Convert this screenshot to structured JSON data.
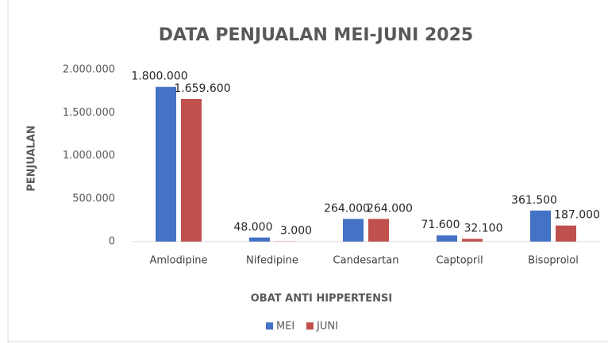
{
  "chart_data": {
    "type": "bar",
    "title": "DATA PENJUALAN MEI-JUNI 2025",
    "x_label": "OBAT ANTI HIPPERTENSI",
    "y_label": "PENJUALAN",
    "categories": [
      "Amlodipine",
      "Nifedipine",
      "Candesartan",
      "Captopril",
      "Bisoprolol"
    ],
    "series": [
      {
        "name": "MEI",
        "color": "#4472c4",
        "values": [
          1800000,
          48000,
          264000,
          71600,
          361500
        ],
        "value_labels": [
          "1.800.000",
          "48.000",
          "264.000",
          "71.600",
          "361.500"
        ]
      },
      {
        "name": "JUNI",
        "color": "#c0504d",
        "values": [
          1659600,
          3000,
          264000,
          32100,
          187000
        ],
        "value_labels": [
          "1.659.600",
          "3.000",
          "264.000",
          "32.100",
          "187.000"
        ]
      }
    ],
    "ylim": [
      0,
      2000000
    ],
    "yticks": [
      0,
      {
        "value": 500000,
        "label": "500.000"
      },
      {
        "value": 1000000,
        "label": "1.000.000"
      },
      {
        "value": 1500000,
        "label": "1.500.000"
      },
      {
        "value": 2000000,
        "label": "2.000.000"
      }
    ],
    "grid": false,
    "legend": "bottom"
  }
}
